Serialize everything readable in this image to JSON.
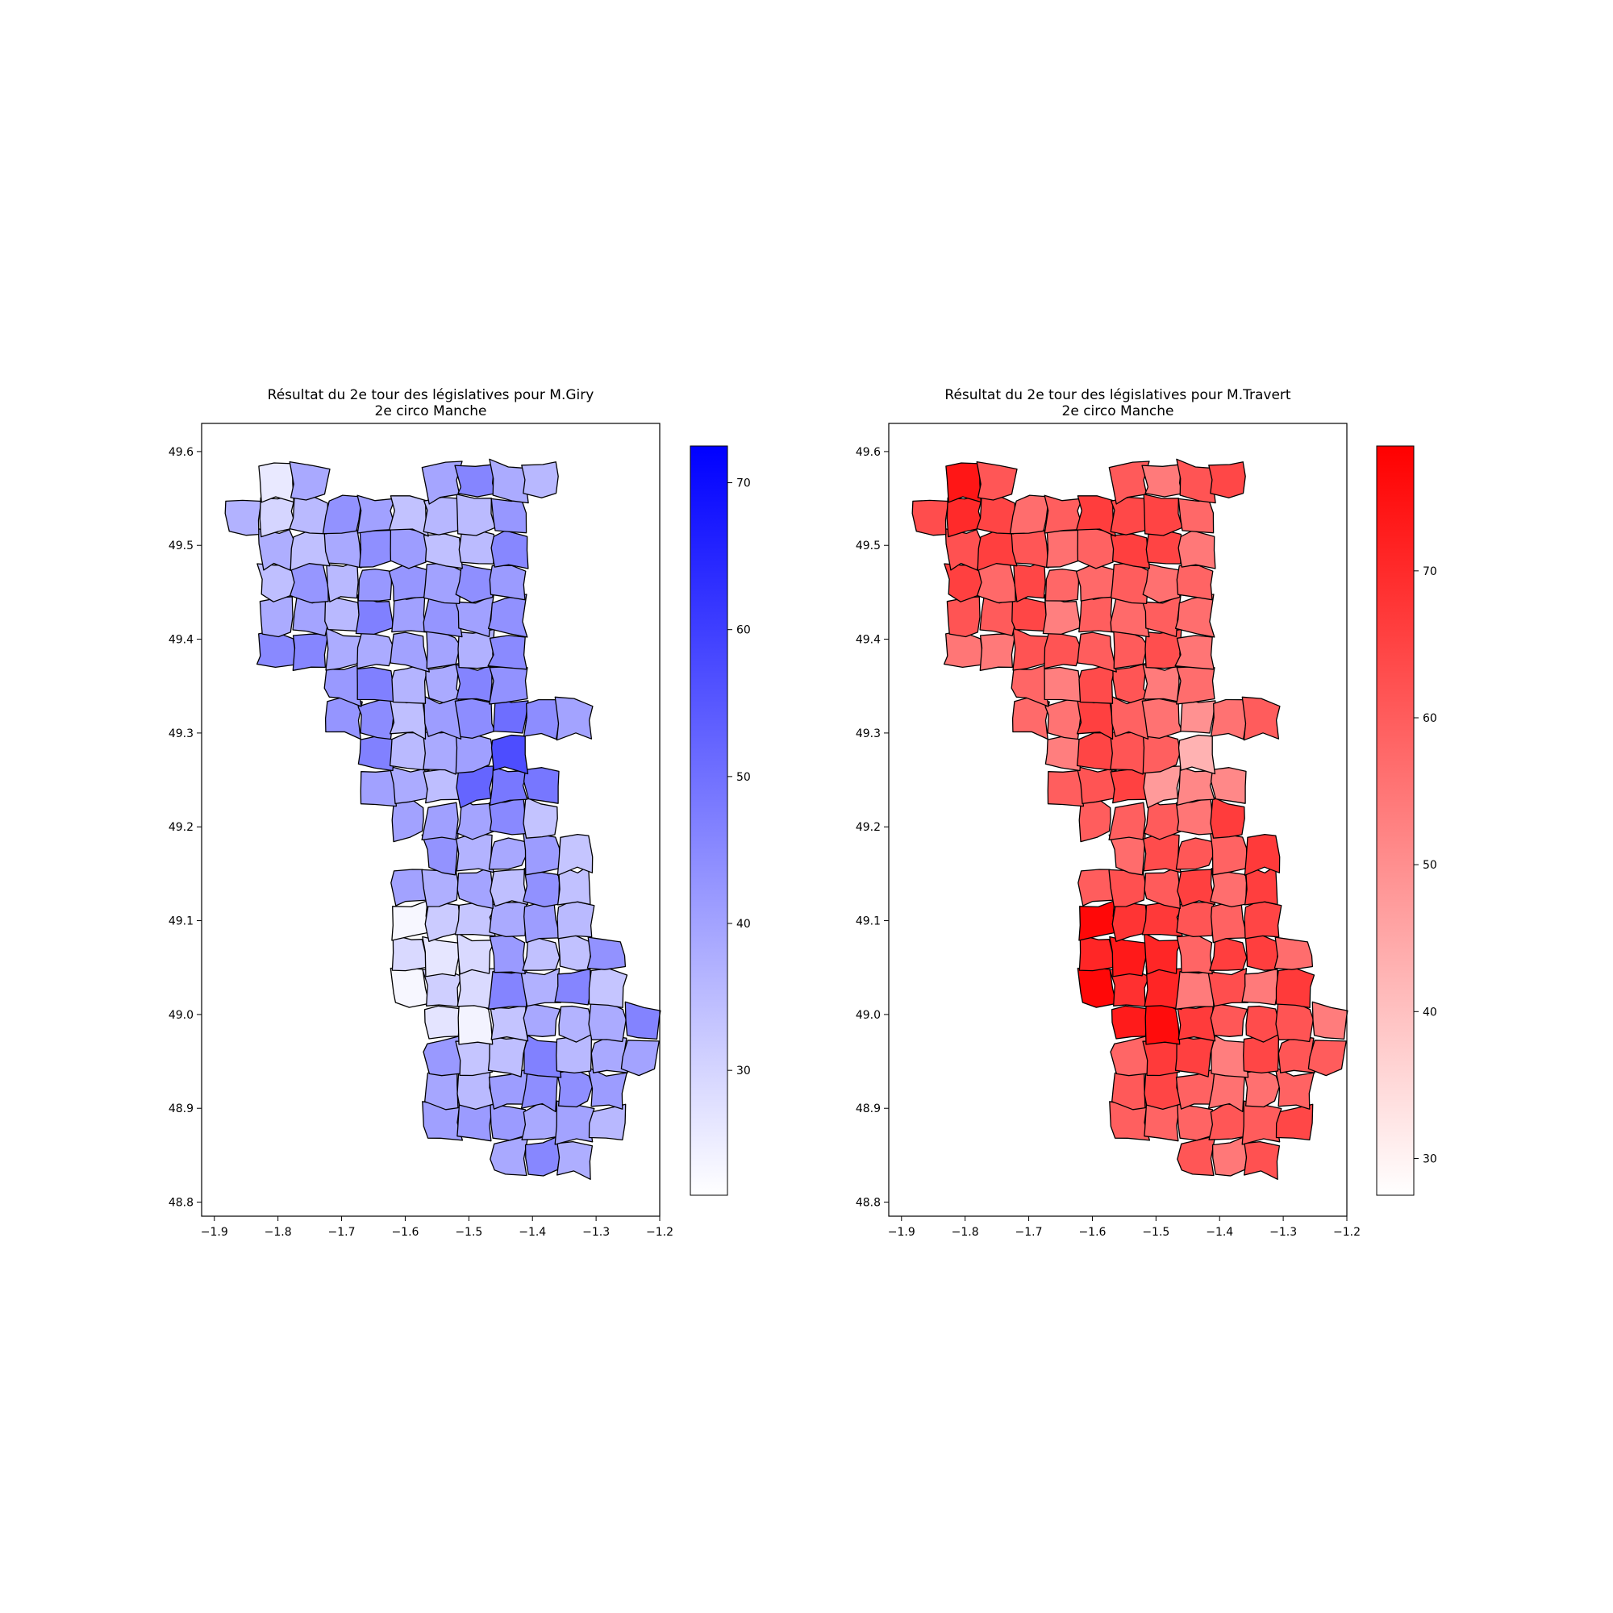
{
  "chart_data": [
    {
      "type": "choropleth",
      "title": "Résultat du 2e tour des législatives pour M.Giry",
      "subtitle": "2e circo Manche",
      "xlabel": "",
      "ylabel": "",
      "xlim": [
        -1.92,
        -1.2
      ],
      "ylim": [
        48.785,
        49.63
      ],
      "x_ticks": [
        "−1.9",
        "−1.8",
        "−1.7",
        "−1.6",
        "−1.5",
        "−1.4",
        "−1.3",
        "−1.2"
      ],
      "y_ticks": [
        "48.8",
        "48.9",
        "49.0",
        "49.1",
        "49.2",
        "49.3",
        "49.4",
        "49.5",
        "49.6"
      ],
      "colorbar": {
        "range": [
          21.5,
          72.5
        ],
        "ticks": [
          "30",
          "40",
          "50",
          "60",
          "70"
        ],
        "color_low": "#ffffff",
        "color_high": "#0000ff"
      }
    },
    {
      "type": "choropleth",
      "title": "Résultat du 2e tour des législatives pour M.Travert",
      "subtitle": "2e circo Manche",
      "xlabel": "",
      "ylabel": "",
      "xlim": [
        -1.92,
        -1.2
      ],
      "ylim": [
        48.785,
        49.63
      ],
      "x_ticks": [
        "−1.9",
        "−1.8",
        "−1.7",
        "−1.6",
        "−1.5",
        "−1.4",
        "−1.3",
        "−1.2"
      ],
      "y_ticks": [
        "48.8",
        "48.9",
        "49.0",
        "49.1",
        "49.2",
        "49.3",
        "49.4",
        "49.5",
        "49.6"
      ],
      "colorbar": {
        "range": [
          27.5,
          78.5
        ],
        "ticks": [
          "30",
          "40",
          "50",
          "60",
          "70"
        ],
        "color_low": "#ffffff",
        "color_high": "#ff0000"
      }
    }
  ]
}
